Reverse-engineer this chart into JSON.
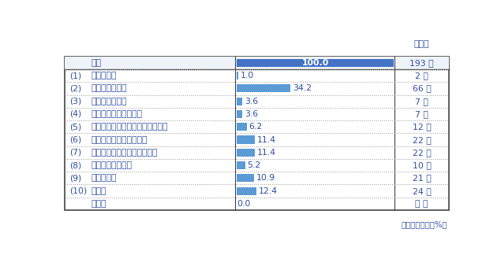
{
  "rows": [
    {
      "label": "全体",
      "prefix": "",
      "value": 100.0,
      "count": "193 件",
      "is_header": true
    },
    {
      "label": "情報通信業",
      "prefix": "(1)",
      "value": 1.0,
      "count": "2 件",
      "is_header": false
    },
    {
      "label": "卸売業、小売業",
      "prefix": "(2)",
      "value": 34.2,
      "count": "66 件",
      "is_header": false
    },
    {
      "label": "金融業、保険業",
      "prefix": "(3)",
      "value": 3.6,
      "count": "7 件",
      "is_header": false
    },
    {
      "label": "不動産業、物品賃貸業",
      "prefix": "(4)",
      "value": 3.6,
      "count": "7 件",
      "is_header": false
    },
    {
      "label": "学術研究、専門・技術サービス業",
      "prefix": "(5)",
      "value": 6.2,
      "count": "12 件",
      "is_header": false
    },
    {
      "label": "宿泊業、飲食サービス業",
      "prefix": "(6)",
      "value": 11.4,
      "count": "22 件",
      "is_header": false
    },
    {
      "label": "生活関連サービス業、娯楽業",
      "prefix": "(7)",
      "value": 11.4,
      "count": "22 件",
      "is_header": false
    },
    {
      "label": "教育、学習支援業",
      "prefix": "(8)",
      "value": 5.2,
      "count": "10 件",
      "is_header": false
    },
    {
      "label": "医療、福祉",
      "prefix": "(9)",
      "value": 10.9,
      "count": "21 件",
      "is_header": false
    },
    {
      "label": "その他",
      "prefix": "(10)",
      "value": 12.4,
      "count": "24 件",
      "is_header": false
    },
    {
      "label": "無回答",
      "prefix": "",
      "value": 0.0,
      "count": "－ 件",
      "is_header": false
    }
  ],
  "bar_color_header": "#4472C4",
  "bar_color_normal": "#5B9BD5",
  "max_value": 100.0,
  "text_color": "#2E4FA0",
  "count_color": "#2E4FA0",
  "header_bg": "#EEF3FA",
  "outer_line_color": "#444444",
  "grid_line_color": "#999999",
  "font_size": 7.8,
  "footer_text": "グラフ単位：（%）",
  "response_header": "回答数"
}
